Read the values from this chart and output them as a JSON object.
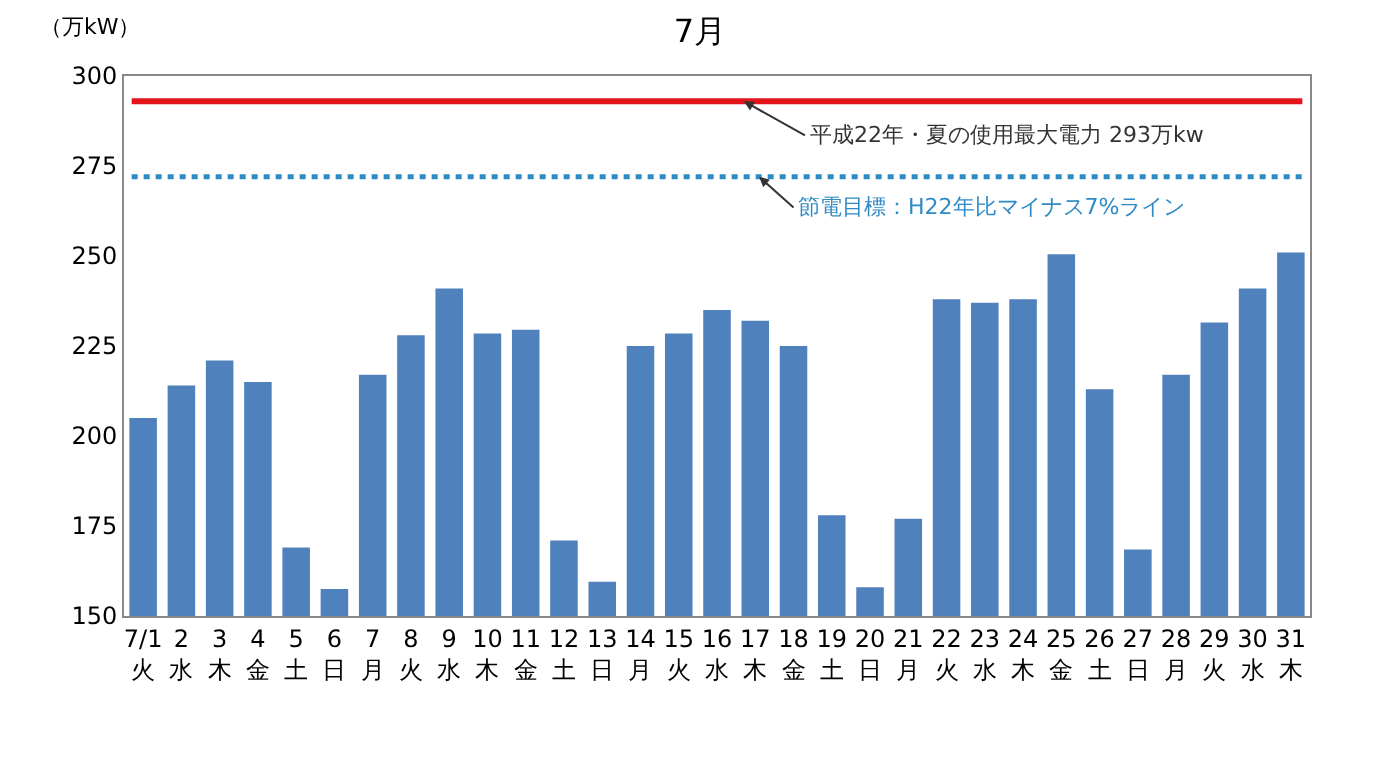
{
  "chart_data": {
    "type": "bar",
    "title": "7月",
    "ylabel": "（万kW）",
    "categories": [
      "7/1\n火",
      "2\n水",
      "3\n木",
      "4\n金",
      "5\n土",
      "6\n日",
      "7\n月",
      "8\n火",
      "9\n水",
      "10\n木",
      "11\n金",
      "12\n土",
      "13\n日",
      "14\n月",
      "15\n火",
      "16\n水",
      "17\n木",
      "18\n金",
      "19\n土",
      "20\n日",
      "21\n月",
      "22\n火",
      "23\n水",
      "24\n木",
      "25\n金",
      "26\n土",
      "27\n日",
      "28\n月",
      "29\n火",
      "30\n水",
      "31\n木"
    ],
    "values": [
      205,
      214,
      221,
      215,
      169,
      157.5,
      217,
      228,
      241,
      228.5,
      229.5,
      171,
      159.5,
      225,
      228.5,
      235,
      232,
      225,
      178,
      158,
      177,
      238,
      237,
      238,
      250.5,
      213,
      168.5,
      217,
      231.5,
      241,
      251
    ],
    "color": "#4f81bd",
    "ylim": [
      150,
      300
    ],
    "yticks": [
      150,
      175,
      200,
      225,
      250,
      275,
      300
    ],
    "grid": false,
    "ref_lines": [
      {
        "axis": "y",
        "value": 293,
        "label": "平成22年・夏の使用最大電力 293万kw",
        "color": "#e3141c",
        "line_style": "solid"
      },
      {
        "axis": "y",
        "value": 272,
        "label": "節電目標：H22年比マイナス7%ライン",
        "color": "#2e8bc6",
        "line_style": "dotted"
      }
    ]
  }
}
